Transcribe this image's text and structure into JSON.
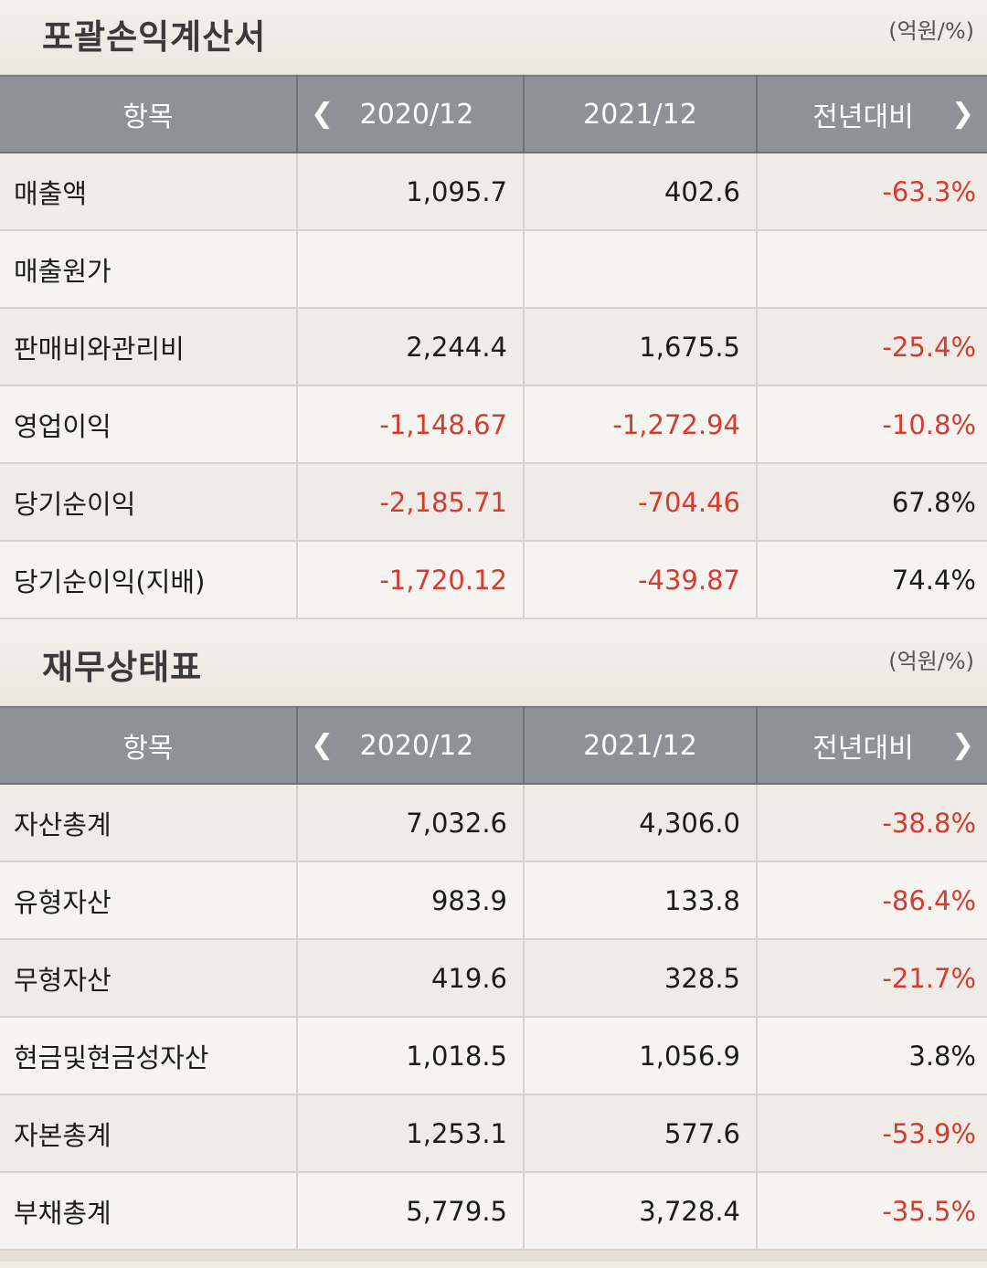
{
  "income_statement": {
    "title": "포괄손익계산서",
    "unit": "(억원/%)",
    "headers": {
      "item": "항목",
      "year1": "2020/12",
      "year2": "2021/12",
      "yoy": "전년대비"
    },
    "nav": {
      "prev_icon": "chevron-left-icon",
      "next_icon": "chevron-right-icon"
    },
    "rows": [
      {
        "label": "매출액",
        "y1": "1,095.7",
        "y2": "402.6",
        "yoy": "-63.3%",
        "y1_neg": false,
        "y2_neg": false,
        "yoy_neg": true
      },
      {
        "label": "매출원가",
        "y1": "",
        "y2": "",
        "yoy": "",
        "y1_neg": false,
        "y2_neg": false,
        "yoy_neg": false
      },
      {
        "label": "판매비와관리비",
        "y1": "2,244.4",
        "y2": "1,675.5",
        "yoy": "-25.4%",
        "y1_neg": false,
        "y2_neg": false,
        "yoy_neg": true
      },
      {
        "label": "영업이익",
        "y1": "-1,148.67",
        "y2": "-1,272.94",
        "yoy": "-10.8%",
        "y1_neg": true,
        "y2_neg": true,
        "yoy_neg": true
      },
      {
        "label": "당기순이익",
        "y1": "-2,185.71",
        "y2": "-704.46",
        "yoy": "67.8%",
        "y1_neg": true,
        "y2_neg": true,
        "yoy_neg": false
      },
      {
        "label": "당기순이익(지배)",
        "y1": "-1,720.12",
        "y2": "-439.87",
        "yoy": "74.4%",
        "y1_neg": true,
        "y2_neg": true,
        "yoy_neg": false
      }
    ]
  },
  "balance_sheet": {
    "title": "재무상태표",
    "unit": "(억원/%)",
    "headers": {
      "item": "항목",
      "year1": "2020/12",
      "year2": "2021/12",
      "yoy": "전년대비"
    },
    "nav": {
      "prev_icon": "chevron-left-icon",
      "next_icon": "chevron-right-icon"
    },
    "rows": [
      {
        "label": "자산총계",
        "y1": "7,032.6",
        "y2": "4,306.0",
        "yoy": "-38.8%",
        "y1_neg": false,
        "y2_neg": false,
        "yoy_neg": true
      },
      {
        "label": "유형자산",
        "y1": "983.9",
        "y2": "133.8",
        "yoy": "-86.4%",
        "y1_neg": false,
        "y2_neg": false,
        "yoy_neg": true
      },
      {
        "label": "무형자산",
        "y1": "419.6",
        "y2": "328.5",
        "yoy": "-21.7%",
        "y1_neg": false,
        "y2_neg": false,
        "yoy_neg": true
      },
      {
        "label": "현금및현금성자산",
        "y1": "1,018.5",
        "y2": "1,056.9",
        "yoy": "3.8%",
        "y1_neg": false,
        "y2_neg": false,
        "yoy_neg": false
      },
      {
        "label": "자본총계",
        "y1": "1,253.1",
        "y2": "577.6",
        "yoy": "-53.9%",
        "y1_neg": false,
        "y2_neg": false,
        "yoy_neg": true
      },
      {
        "label": "부채총계",
        "y1": "5,779.5",
        "y2": "3,728.4",
        "yoy": "-35.5%",
        "y1_neg": false,
        "y2_neg": false,
        "yoy_neg": true
      }
    ]
  },
  "colors": {
    "negative": "#d63b30",
    "header_bg": "#8e9198"
  }
}
